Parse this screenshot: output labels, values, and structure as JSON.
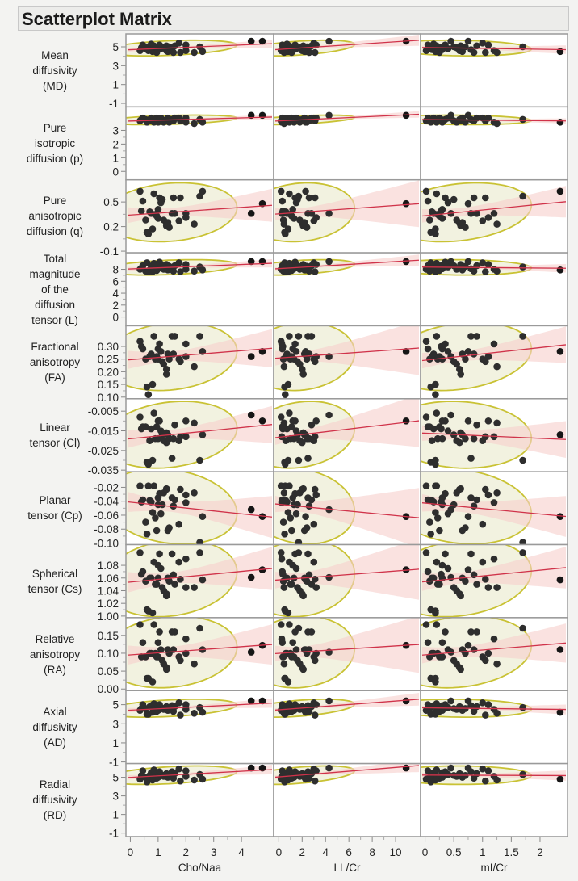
{
  "title": "Scatterplot Matrix",
  "colors": {
    "point": "#2e2e2e",
    "point_outlier": "#161616",
    "fit_line": "#d0334a",
    "confidence_band": "#f6cfcb",
    "ellipse_stroke": "#c9c234",
    "ellipse_fill": "#f2f2e0",
    "cell_border": "#9a9a9a",
    "background": "#f3f3f1"
  },
  "chart_data": {
    "type": "scatter",
    "title": "Scatterplot Matrix",
    "grid": false,
    "overlays": [
      "density ellipse",
      "linear fit",
      "confidence band of fit"
    ],
    "columns": [
      {
        "label": "Cho/Naa",
        "range": [
          -0.1,
          5.1
        ],
        "ticks": [
          "0",
          "1",
          "2",
          "3",
          "4"
        ],
        "tick_values": [
          0,
          1,
          2,
          3,
          4
        ]
      },
      {
        "label": "LL/Cr",
        "range": [
          -0.3,
          12.0
        ],
        "ticks": [
          "0",
          "2",
          "4",
          "6",
          "8",
          "10"
        ],
        "tick_values": [
          0,
          2,
          4,
          6,
          8,
          10
        ]
      },
      {
        "label": "mI/Cr",
        "range": [
          -0.05,
          2.45
        ],
        "ticks": [
          "0",
          "0.5",
          "1",
          "1.5",
          "2"
        ],
        "tick_values": [
          0,
          0.5,
          1,
          1.5,
          2
        ]
      }
    ],
    "rows": [
      {
        "label": [
          "Mean",
          "diffusivity",
          "(MD)"
        ],
        "range": [
          -1.2,
          6.2
        ],
        "ticks": [
          "-1",
          "1",
          "3",
          "5"
        ],
        "tick_values": [
          -1,
          1,
          3,
          5
        ]
      },
      {
        "label": [
          "Pure",
          "isotropic",
          "diffusion (p)"
        ],
        "range": [
          -0.5,
          4.6
        ],
        "ticks": [
          "0",
          "1",
          "2",
          "3"
        ],
        "tick_values": [
          0,
          1,
          2,
          3
        ]
      },
      {
        "label": [
          "Pure",
          "anisotropic",
          "diffusion (q)"
        ],
        "range": [
          -0.1,
          0.75
        ],
        "ticks": [
          "-0.1",
          "0.2",
          "0.5"
        ],
        "tick_values": [
          -0.1,
          0.2,
          0.5
        ]
      },
      {
        "label": [
          "Total",
          "magnitude",
          "of the",
          "diffusion",
          "tensor (L)"
        ],
        "range": [
          -1.2,
          10.5
        ],
        "ticks": [
          "0",
          "2",
          "4",
          "6",
          "8"
        ],
        "tick_values": [
          0,
          2,
          4,
          6,
          8
        ]
      },
      {
        "label": [
          "Fractional",
          "anisotropy",
          "(FA)"
        ],
        "range": [
          0.1,
          0.375
        ],
        "ticks": [
          "0.10",
          "0.15",
          "0.20",
          "0.25",
          "0.30"
        ],
        "tick_values": [
          0.1,
          0.15,
          0.2,
          0.25,
          0.3
        ]
      },
      {
        "label": [
          "Linear",
          "tensor (Cl)"
        ],
        "range": [
          -0.035,
          0.0005
        ],
        "ticks": [
          "-0.035",
          "-0.025",
          "-0.015",
          "-0.005"
        ],
        "tick_values": [
          -0.035,
          -0.025,
          -0.015,
          -0.005
        ]
      },
      {
        "label": [
          "Planar",
          "tensor (Cp)"
        ],
        "range": [
          -0.1,
          0.0
        ],
        "ticks": [
          "-0.10",
          "-0.08",
          "-0.06",
          "-0.04",
          "-0.02"
        ],
        "tick_values": [
          -0.1,
          -0.08,
          -0.06,
          -0.04,
          -0.02
        ]
      },
      {
        "label": [
          "Spherical",
          "tensor (Cs)"
        ],
        "range": [
          1.0,
          1.11
        ],
        "ticks": [
          "1.00",
          "1.02",
          "1.04",
          "1.06",
          "1.08"
        ],
        "tick_values": [
          1.0,
          1.02,
          1.04,
          1.06,
          1.08
        ]
      },
      {
        "label": [
          "Relative",
          "anisotropy",
          "(RA)"
        ],
        "range": [
          0.0,
          0.195
        ],
        "ticks": [
          "0.00",
          "0.05",
          "0.10",
          "0.15"
        ],
        "tick_values": [
          0.0,
          0.05,
          0.1,
          0.15
        ]
      },
      {
        "label": [
          "Axial",
          "diffusivity",
          "(AD)"
        ],
        "range": [
          -1.0,
          6.3
        ],
        "ticks": [
          "-1",
          "1",
          "3",
          "5"
        ],
        "tick_values": [
          -1,
          1,
          3,
          5
        ]
      },
      {
        "label": [
          "Radial",
          "diffusivity",
          "(RD)"
        ],
        "range": [
          -1.2,
          6.3
        ],
        "ticks": [
          "-1",
          "1",
          "3",
          "5"
        ],
        "tick_values": [
          -1,
          1,
          3,
          5
        ]
      }
    ],
    "x_values": {
      "Cho/Naa": [
        0.35,
        0.45,
        0.55,
        0.6,
        0.7,
        0.75,
        0.8,
        0.85,
        0.9,
        0.95,
        1.0,
        1.0,
        1.05,
        1.1,
        1.15,
        1.2,
        1.3,
        1.3,
        1.35,
        1.4,
        1.5,
        1.55,
        1.6,
        1.75,
        1.8,
        2.0,
        2.0,
        2.3,
        2.5,
        2.6,
        4.35,
        4.75,
        0.4,
        0.65
      ],
      "LL/Cr": [
        0.2,
        0.3,
        0.4,
        0.5,
        0.6,
        0.7,
        0.8,
        0.9,
        1.0,
        1.1,
        1.2,
        1.3,
        1.4,
        1.5,
        1.6,
        1.8,
        2.0,
        2.1,
        2.2,
        2.4,
        2.5,
        2.6,
        2.8,
        3.0,
        3.1,
        3.2,
        0.25,
        0.45,
        1.7,
        2.3,
        4.3,
        10.9,
        0.35,
        0.55
      ],
      "mI/Cr": [
        0.02,
        0.05,
        0.08,
        0.1,
        0.12,
        0.15,
        0.18,
        0.2,
        0.22,
        0.25,
        0.3,
        0.3,
        0.35,
        0.4,
        0.5,
        0.55,
        0.6,
        0.62,
        0.65,
        0.7,
        0.8,
        0.85,
        0.9,
        1.0,
        1.05,
        1.1,
        1.2,
        1.25,
        1.7,
        2.35,
        0.45,
        0.75,
        0.28,
        0.18
      ]
    },
    "y_values": {
      "MD": [
        4.6,
        5.2,
        4.8,
        5.0,
        4.7,
        5.3,
        4.5,
        5.1,
        4.9,
        4.4,
        5.0,
        4.7,
        5.2,
        4.8,
        5.0,
        4.9,
        4.6,
        5.1,
        4.5,
        5.0,
        4.7,
        4.4,
        5.1,
        5.4,
        4.4,
        5.2,
        4.6,
        4.4,
        5.0,
        4.5,
        5.6,
        5.6,
        4.9,
        4.6
      ],
      "p": [
        3.7,
        3.9,
        3.8,
        3.6,
        3.8,
        3.9,
        3.7,
        3.6,
        3.8,
        3.9,
        3.7,
        3.6,
        3.8,
        3.9,
        3.7,
        3.6,
        3.8,
        3.7,
        3.9,
        3.6,
        3.8,
        3.7,
        3.9,
        3.9,
        3.7,
        3.9,
        3.6,
        3.5,
        3.8,
        3.6,
        4.1,
        4.1,
        3.8,
        3.7
      ],
      "q": [
        0.63,
        0.51,
        0.28,
        0.13,
        0.38,
        0.36,
        0.17,
        0.6,
        0.35,
        0.33,
        0.41,
        0.3,
        0.55,
        0.49,
        0.53,
        0.28,
        0.24,
        0.21,
        0.25,
        0.19,
        0.36,
        0.55,
        0.36,
        0.27,
        0.55,
        0.31,
        0.36,
        0.23,
        0.57,
        0.63,
        0.36,
        0.48,
        0.39,
        0.11
      ],
      "L": [
        8.0,
        8.6,
        7.7,
        9.1,
        7.9,
        8.5,
        7.6,
        9.0,
        8.2,
        7.8,
        8.7,
        8.1,
        9.2,
        8.4,
        8.6,
        8.0,
        8.3,
        8.8,
        7.9,
        8.5,
        8.1,
        7.7,
        8.6,
        9.1,
        7.6,
        8.8,
        8.0,
        7.7,
        8.4,
        7.9,
        9.3,
        9.3,
        8.2,
        7.6
      ],
      "FA": [
        0.32,
        0.29,
        0.25,
        0.14,
        0.26,
        0.27,
        0.15,
        0.34,
        0.25,
        0.26,
        0.29,
        0.25,
        0.31,
        0.28,
        0.24,
        0.23,
        0.21,
        0.19,
        0.27,
        0.25,
        0.34,
        0.27,
        0.34,
        0.25,
        0.24,
        0.26,
        0.31,
        0.22,
        0.34,
        0.28,
        0.26,
        0.28,
        0.3,
        0.11
      ],
      "Cl": [
        -0.008,
        -0.013,
        -0.013,
        -0.031,
        -0.02,
        -0.014,
        -0.03,
        -0.006,
        -0.019,
        -0.013,
        -0.01,
        -0.019,
        -0.01,
        -0.015,
        -0.017,
        -0.02,
        -0.021,
        -0.016,
        -0.017,
        -0.019,
        -0.029,
        -0.019,
        -0.012,
        -0.02,
        -0.018,
        -0.01,
        -0.018,
        -0.011,
        -0.03,
        -0.017,
        -0.007,
        -0.01,
        -0.014,
        -0.032
      ],
      "Cp": [
        -0.018,
        -0.038,
        -0.07,
        -0.087,
        -0.039,
        -0.041,
        -0.056,
        -0.018,
        -0.064,
        -0.082,
        -0.035,
        -0.045,
        -0.029,
        -0.058,
        -0.045,
        -0.028,
        -0.023,
        -0.022,
        -0.082,
        -0.078,
        -0.035,
        -0.047,
        -0.038,
        -0.073,
        -0.023,
        -0.031,
        -0.042,
        -0.028,
        -0.099,
        -0.062,
        -0.052,
        -0.062,
        -0.041,
        -0.018
      ],
      "Cs": [
        1.1,
        1.07,
        1.055,
        1.01,
        1.06,
        1.06,
        1.005,
        1.085,
        1.05,
        1.05,
        1.08,
        1.06,
        1.098,
        1.075,
        1.045,
        1.04,
        1.035,
        1.032,
        1.06,
        1.055,
        1.098,
        1.065,
        1.05,
        1.085,
        1.058,
        1.045,
        1.09,
        1.045,
        1.1,
        1.057,
        1.061,
        1.073,
        1.066,
        1.008
      ],
      "RA": [
        0.18,
        0.13,
        0.09,
        0.03,
        0.1,
        0.1,
        0.02,
        0.18,
        0.1,
        0.09,
        0.13,
        0.09,
        0.16,
        0.11,
        0.08,
        0.07,
        0.06,
        0.055,
        0.11,
        0.1,
        0.16,
        0.11,
        0.16,
        0.09,
        0.08,
        0.1,
        0.14,
        0.07,
        0.17,
        0.11,
        0.103,
        0.122,
        0.09,
        0.03
      ],
      "AD": [
        4.4,
        5.0,
        4.6,
        4.0,
        4.8,
        4.9,
        4.2,
        5.1,
        4.5,
        4.3,
        4.9,
        4.4,
        5.0,
        4.7,
        4.6,
        4.5,
        4.8,
        4.7,
        4.4,
        4.6,
        4.9,
        4.3,
        4.8,
        5.2,
        3.9,
        5.0,
        4.5,
        4.1,
        4.7,
        4.2,
        5.4,
        5.4,
        4.6,
        4.0
      ],
      "RD": [
        4.8,
        5.7,
        5.0,
        4.5,
        5.2,
        5.5,
        4.7,
        5.8,
        5.1,
        4.9,
        5.5,
        5.0,
        5.6,
        5.3,
        5.2,
        5.1,
        5.4,
        5.3,
        5.0,
        5.2,
        5.6,
        4.9,
        5.4,
        5.9,
        4.6,
        5.7,
        5.1,
        4.7,
        5.3,
        4.8,
        6.0,
        6.0,
        5.2,
        4.7
      ]
    }
  }
}
